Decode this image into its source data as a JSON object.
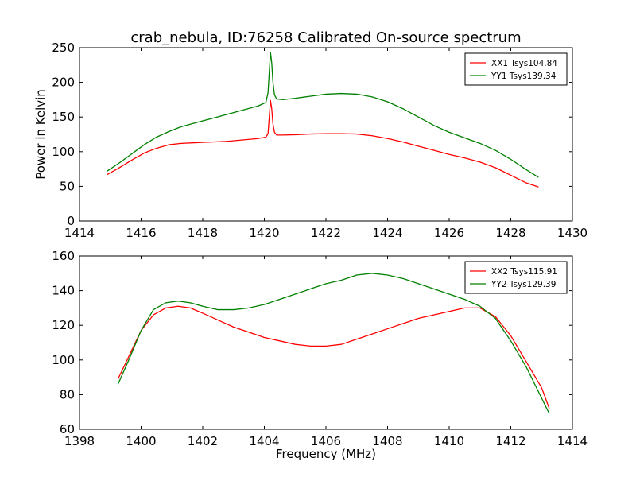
{
  "title": "crab_nebula, ID:76258 Calibrated On-source spectrum",
  "colors": {
    "red": "#ff0000",
    "green": "#008000"
  },
  "chart_data": [
    {
      "type": "line",
      "title": "crab_nebula, ID:76258 Calibrated On-source spectrum",
      "xlabel": "",
      "ylabel": "Power in Kelvin",
      "xlim": [
        1414,
        1430
      ],
      "ylim": [
        0,
        250
      ],
      "xticks": [
        1414,
        1416,
        1418,
        1420,
        1422,
        1424,
        1426,
        1428,
        1430
      ],
      "yticks": [
        0,
        50,
        100,
        150,
        200,
        250
      ],
      "grid": false,
      "legend": "top-right",
      "series": [
        {
          "name": "XX1 Tsys104.84",
          "color": "#ff0000",
          "x": [
            1414.9,
            1415.3,
            1415.7,
            1416.1,
            1416.5,
            1416.9,
            1417.3,
            1417.8,
            1418.3,
            1418.8,
            1419.3,
            1419.8,
            1420.05,
            1420.12,
            1420.16,
            1420.2,
            1420.24,
            1420.28,
            1420.33,
            1420.4,
            1420.6,
            1421.0,
            1421.5,
            1422.0,
            1422.5,
            1423.0,
            1423.5,
            1424.0,
            1424.5,
            1425.0,
            1425.5,
            1426.0,
            1426.5,
            1427.0,
            1427.5,
            1428.0,
            1428.5,
            1428.9
          ],
          "y": [
            67,
            77,
            88,
            98,
            105,
            110,
            112,
            113,
            114,
            115,
            117,
            119,
            121,
            126,
            150,
            174,
            162,
            140,
            128,
            124,
            124,
            124.5,
            125.5,
            126,
            126,
            125.5,
            123,
            119,
            114,
            108,
            102,
            96,
            91,
            85,
            77,
            66,
            55,
            49
          ]
        },
        {
          "name": "YY1 Tsys139.34",
          "color": "#008000",
          "x": [
            1414.9,
            1415.3,
            1415.7,
            1416.1,
            1416.5,
            1416.9,
            1417.3,
            1417.8,
            1418.3,
            1418.8,
            1419.3,
            1419.8,
            1420.05,
            1420.12,
            1420.16,
            1420.2,
            1420.24,
            1420.28,
            1420.33,
            1420.4,
            1420.6,
            1421.0,
            1421.5,
            1422.0,
            1422.5,
            1423.0,
            1423.5,
            1424.0,
            1424.5,
            1425.0,
            1425.5,
            1426.0,
            1426.5,
            1427.0,
            1427.5,
            1428.0,
            1428.5,
            1428.9
          ],
          "y": [
            72,
            84,
            97,
            110,
            121,
            129,
            136,
            142,
            148,
            154,
            160,
            166,
            171,
            185,
            215,
            243,
            228,
            200,
            182,
            176,
            175,
            177,
            180,
            183,
            184,
            183,
            179,
            172,
            162,
            150,
            138,
            128,
            120,
            112,
            102,
            89,
            74,
            63
          ]
        }
      ]
    },
    {
      "type": "line",
      "title": "",
      "xlabel": "Frequency (MHz)",
      "ylabel": "",
      "xlim": [
        1398,
        1414
      ],
      "ylim": [
        60,
        160
      ],
      "xticks": [
        1398,
        1400,
        1402,
        1404,
        1406,
        1408,
        1410,
        1412,
        1414
      ],
      "yticks": [
        60,
        80,
        100,
        120,
        140,
        160
      ],
      "grid": false,
      "legend": "top-right",
      "series": [
        {
          "name": "XX2 Tsys115.91",
          "color": "#ff0000",
          "x": [
            1399.25,
            1399.6,
            1400.0,
            1400.4,
            1400.8,
            1401.2,
            1401.6,
            1402.0,
            1402.5,
            1403.0,
            1403.5,
            1404.0,
            1404.5,
            1405.0,
            1405.5,
            1406.0,
            1406.5,
            1407.0,
            1407.5,
            1408.0,
            1408.5,
            1409.0,
            1409.5,
            1410.0,
            1410.5,
            1411.0,
            1411.5,
            1412.0,
            1412.5,
            1413.0,
            1413.25
          ],
          "y": [
            89,
            102,
            117,
            126,
            130,
            131,
            130,
            127,
            123,
            119,
            116,
            113,
            111,
            109,
            108,
            108,
            109,
            112,
            115,
            118,
            121,
            124,
            126,
            128,
            130,
            130,
            125,
            114,
            99,
            84,
            72
          ]
        },
        {
          "name": "YY2 Tsys129.39",
          "color": "#008000",
          "x": [
            1399.25,
            1399.6,
            1400.0,
            1400.4,
            1400.8,
            1401.2,
            1401.6,
            1402.0,
            1402.5,
            1403.0,
            1403.5,
            1404.0,
            1404.5,
            1405.0,
            1405.5,
            1406.0,
            1406.5,
            1407.0,
            1407.5,
            1408.0,
            1408.5,
            1409.0,
            1409.5,
            1410.0,
            1410.5,
            1411.0,
            1411.5,
            1412.0,
            1412.5,
            1413.0,
            1413.25
          ],
          "y": [
            86,
            100,
            117,
            129,
            133,
            134,
            133,
            131,
            129,
            129,
            130,
            132,
            135,
            138,
            141,
            144,
            146,
            149,
            150,
            149,
            147,
            144,
            141,
            138,
            135,
            131,
            124,
            111,
            96,
            78,
            69
          ]
        }
      ]
    }
  ]
}
